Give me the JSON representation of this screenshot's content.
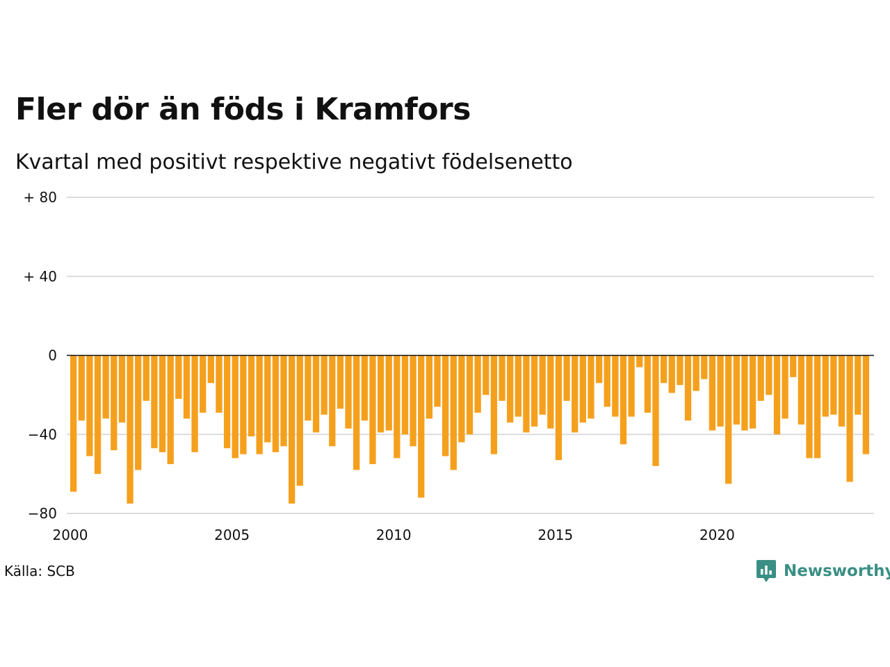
{
  "title": "Fler dör än föds i Kramfors",
  "subtitle": "Kvartal med positivt respektive negativt födelsenetto",
  "source": "Källa: SCB",
  "brand": {
    "name": "Newsworthy",
    "icon": "newsworthy-logo-icon",
    "color": "#3a8f84"
  },
  "chart_data": {
    "type": "bar",
    "bar_color": "#f5a01d",
    "grid": true,
    "ylim": [
      -80,
      80
    ],
    "yticks": [
      {
        "value": 80,
        "label": "+ 80"
      },
      {
        "value": 40,
        "label": "+ 40"
      },
      {
        "value": 0,
        "label": "0"
      },
      {
        "value": -40,
        "label": "−40"
      },
      {
        "value": -80,
        "label": "−80"
      }
    ],
    "xlim": [
      2000,
      2024.75
    ],
    "xticks": [
      {
        "value": 2000,
        "label": "2000"
      },
      {
        "value": 2005,
        "label": "2005"
      },
      {
        "value": 2010,
        "label": "2010"
      },
      {
        "value": 2015,
        "label": "2015"
      },
      {
        "value": 2020,
        "label": "2020"
      }
    ],
    "start_year": 2000,
    "quarters_per_year": 4,
    "values": [
      -69,
      -33,
      -51,
      -60,
      -32,
      -48,
      -34,
      -75,
      -58,
      -23,
      -47,
      -49,
      -55,
      -22,
      -32,
      -49,
      -29,
      -14,
      -29,
      -47,
      -52,
      -50,
      -41,
      -50,
      -44,
      -49,
      -46,
      -75,
      -66,
      -33,
      -39,
      -30,
      -46,
      -27,
      -37,
      -58,
      -33,
      -55,
      -39,
      -38,
      -52,
      -40,
      -46,
      -72,
      -32,
      -26,
      -51,
      -58,
      -44,
      -40,
      -29,
      -20,
      -50,
      -23,
      -34,
      -31,
      -39,
      -36,
      -30,
      -37,
      -53,
      -23,
      -39,
      -34,
      -32,
      -14,
      -26,
      -31,
      -45,
      -31,
      -6,
      -29,
      -56,
      -14,
      -19,
      -15,
      -33,
      -18,
      -12,
      -38,
      -36,
      -65,
      -35,
      -38,
      -37,
      -23,
      -20,
      -40,
      -32,
      -11,
      -35,
      -52,
      -52,
      -31,
      -30,
      -36,
      -64,
      -30,
      -50
    ]
  }
}
